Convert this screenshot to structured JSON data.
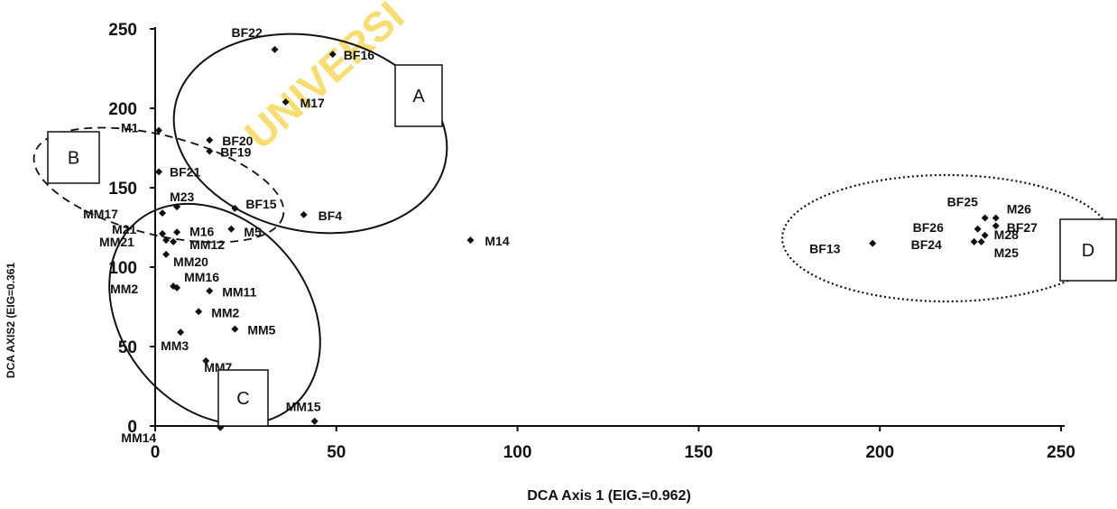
{
  "chart_data": {
    "type": "scatter",
    "title": "",
    "watermark": "UNIVERSI",
    "xlabel": "DCA Axis 1 (EIG.=0.962)",
    "ylabel": "DCA AXIS2 (EIG=0.361",
    "xlim": [
      0,
      250
    ],
    "ylim": [
      0,
      250
    ],
    "xticks": [
      0,
      50,
      100,
      150,
      200,
      250
    ],
    "yticks": [
      0,
      50,
      100,
      150,
      200,
      250
    ],
    "grid": false,
    "marker_color": "#111111",
    "points": [
      {
        "label": "BF22",
        "x": 33,
        "y": 237
      },
      {
        "label": "BF16",
        "x": 49,
        "y": 234
      },
      {
        "label": "M17",
        "x": 36,
        "y": 204
      },
      {
        "label": "M1",
        "x": 1,
        "y": 186
      },
      {
        "label": "BF20",
        "x": 15,
        "y": 180
      },
      {
        "label": "BF19",
        "x": 15,
        "y": 173
      },
      {
        "label": "BF21",
        "x": 1,
        "y": 160
      },
      {
        "label": "M23",
        "x": 6,
        "y": 138
      },
      {
        "label": "BF15",
        "x": 22,
        "y": 137
      },
      {
        "label": "BF4",
        "x": 41,
        "y": 133
      },
      {
        "label": "MM17",
        "x": 2,
        "y": 134
      },
      {
        "label": "M21",
        "x": 2,
        "y": 121
      },
      {
        "label": "M16",
        "x": 6,
        "y": 122
      },
      {
        "label": "M5",
        "x": 21,
        "y": 124
      },
      {
        "label": "MM12",
        "x": 5,
        "y": 116
      },
      {
        "label": "MM21",
        "x": 3,
        "y": 117
      },
      {
        "label": "MM20",
        "x": 3,
        "y": 108
      },
      {
        "label": "MM16",
        "x": 5,
        "y": 88
      },
      {
        "label": "MM2",
        "x": 6,
        "y": 87
      },
      {
        "label": "MM11",
        "x": 15,
        "y": 85
      },
      {
        "label": "MM2",
        "x": 12,
        "y": 72
      },
      {
        "label": "MM5",
        "x": 22,
        "y": 61
      },
      {
        "label": "MM3",
        "x": 7,
        "y": 59
      },
      {
        "label": "MM7",
        "x": 14,
        "y": 41
      },
      {
        "label": "MM15",
        "x": 44,
        "y": 3
      },
      {
        "label": "MM14",
        "x": 18,
        "y": -1
      },
      {
        "label": "M14",
        "x": 87,
        "y": 117
      },
      {
        "label": "BF13",
        "x": 198,
        "y": 115
      },
      {
        "label": "BF25",
        "x": 229,
        "y": 131
      },
      {
        "label": "M26",
        "x": 232,
        "y": 131
      },
      {
        "label": "BF26",
        "x": 227,
        "y": 124
      },
      {
        "label": "BF27",
        "x": 232,
        "y": 126
      },
      {
        "label": "M28",
        "x": 229,
        "y": 120
      },
      {
        "label": "BF24",
        "x": 226,
        "y": 116
      },
      {
        "label": "M25",
        "x": 228,
        "y": 116
      }
    ],
    "groups": [
      {
        "label": "A",
        "style": "solid"
      },
      {
        "label": "B",
        "style": "dashed"
      },
      {
        "label": "C",
        "style": "solid"
      },
      {
        "label": "D",
        "style": "dotted"
      }
    ]
  }
}
